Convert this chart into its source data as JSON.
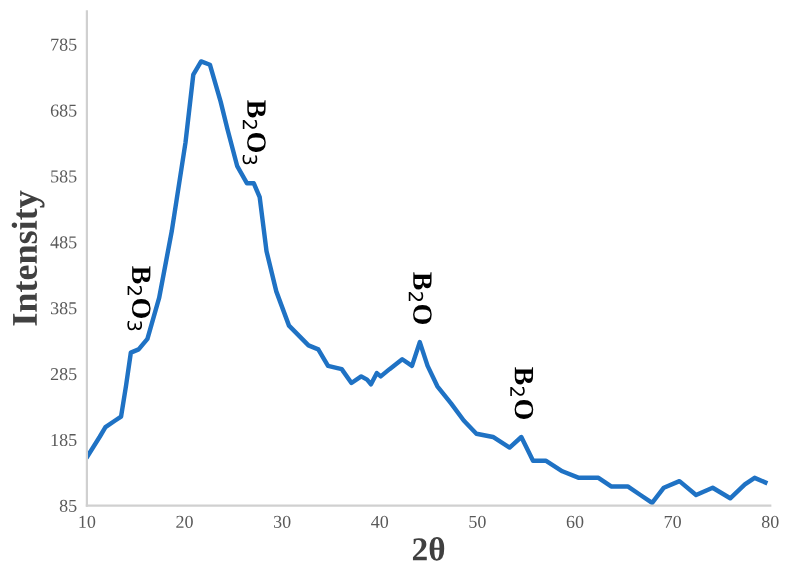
{
  "chart_data": {
    "type": "line",
    "xlabel": "2θ",
    "ylabel": "Intensity",
    "x": [
      10.07,
      11.3,
      11.9,
      12.9,
      13.5,
      14.0,
      14.5,
      15.3,
      16.2,
      17.4,
      18.7,
      20.1,
      20.9,
      21.7,
      22.6,
      23.7,
      24.4,
      25.4,
      26.4,
      27.1,
      27.7,
      28.4,
      29.4,
      30.7,
      32.7,
      33.7,
      34.7,
      36.1,
      37.1,
      38.1,
      38.7,
      39.1,
      39.7,
      40.1,
      41.0,
      42.3,
      43.3,
      44.1,
      44.9,
      45.9,
      47.3,
      48.6,
      49.9,
      51.6,
      53.3,
      54.5,
      55.7,
      57.0,
      58.7,
      60.4,
      62.4,
      63.7,
      65.4,
      66.7,
      67.9,
      69.1,
      70.7,
      72.4,
      74.1,
      75.9,
      77.4,
      78.4,
      79.5
    ],
    "series": [
      {
        "color": "#1f72c4",
        "values": [
          160,
          189,
          204,
          214,
          220,
          266,
          317,
          322,
          338,
          400,
          502,
          636,
          739,
          759,
          754,
          698,
          656,
          600,
          574,
          574,
          553,
          471,
          410,
          358,
          328,
          322,
          297,
          292,
          271,
          281,
          276,
          269,
          286,
          281,
          292,
          307,
          297,
          333,
          297,
          266,
          240,
          214,
          194,
          189,
          173,
          189,
          153,
          153,
          137,
          127,
          127,
          114,
          114,
          101,
          89,
          112,
          122,
          101,
          112,
          96,
          117,
          127,
          120
        ]
      }
    ],
    "xlim": [
      10,
      80
    ],
    "xticks": [
      10,
      20,
      30,
      40,
      50,
      60,
      70,
      80
    ],
    "ylim": [
      85,
      835
    ],
    "yticks": [
      85,
      185,
      285,
      385,
      485,
      585,
      685,
      785
    ],
    "grid": false,
    "legend": false,
    "marker": "none",
    "line_style": "solid",
    "annotations": [
      {
        "text": "B$_{2}$O$_{3}$",
        "x": 15.3,
        "y": 322
      },
      {
        "text": "B$_{2}$O$_{3}$",
        "x": 27.1,
        "y": 574
      },
      {
        "text": "B$_{2}$O",
        "x": 44.1,
        "y": 333
      },
      {
        "text": "B$_{2}$O",
        "x": 54.5,
        "y": 189
      }
    ]
  }
}
